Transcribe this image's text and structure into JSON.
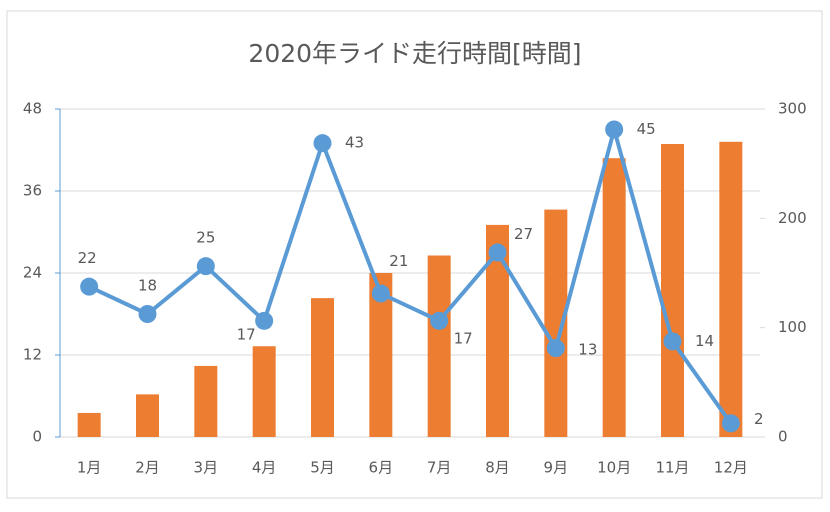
{
  "chart_data": {
    "type": "bar-line",
    "title": "2020年ライド走行時間[時間]",
    "categories": [
      "1月",
      "2月",
      "3月",
      "4月",
      "5月",
      "6月",
      "7月",
      "8月",
      "9月",
      "10月",
      "11月",
      "12月"
    ],
    "series": [
      {
        "type": "bar",
        "axis": "y2",
        "color": "#ed7d31",
        "values": [
          22,
          39,
          65,
          83,
          127,
          150,
          166,
          194,
          208,
          255,
          268,
          270
        ]
      },
      {
        "type": "line",
        "axis": "y",
        "color": "#5b9bd5",
        "values": [
          22,
          18,
          25,
          17,
          43,
          21,
          17,
          27,
          13,
          45,
          14,
          2
        ]
      }
    ],
    "ylim": [
      0,
      48
    ],
    "yticks": [
      0,
      12,
      24,
      36,
      48
    ],
    "y2lim": [
      0,
      300
    ],
    "y2ticks": [
      0,
      100,
      200,
      300
    ],
    "grid": true
  }
}
